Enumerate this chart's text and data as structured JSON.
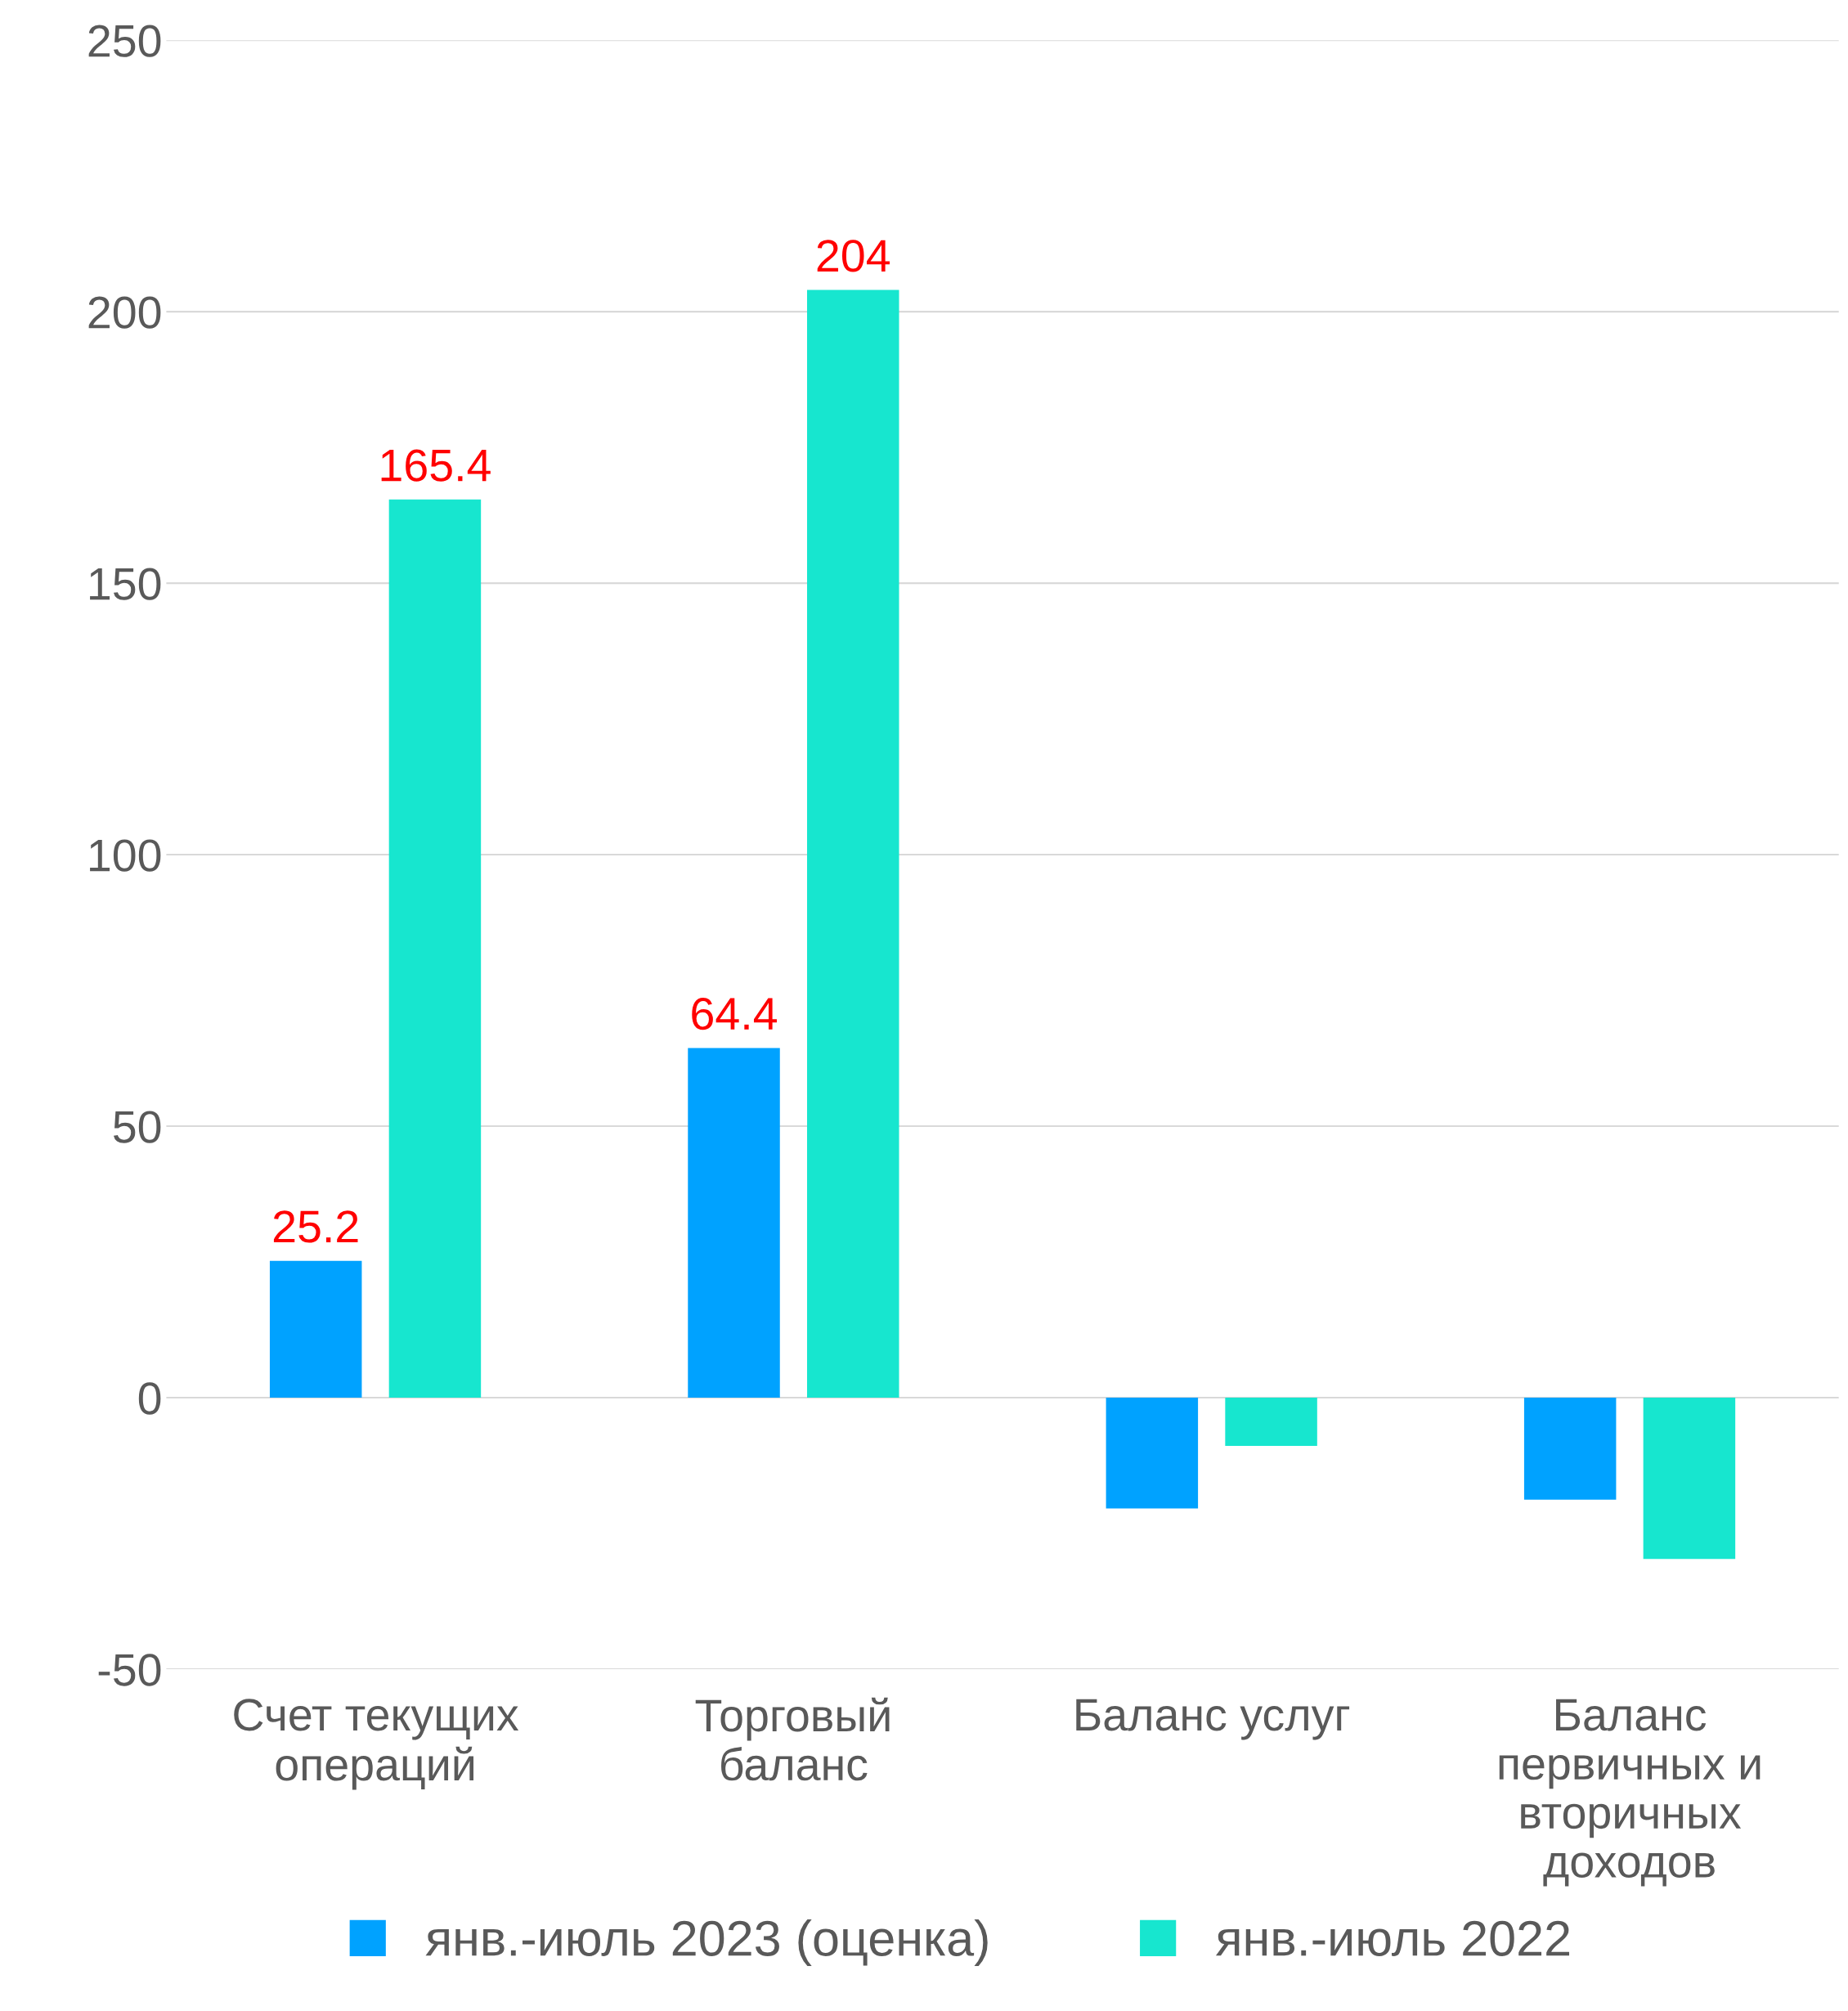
{
  "chart_data": {
    "type": "bar",
    "categories": [
      "Счет текущих\nопераций",
      "Торговый\nбаланс",
      "Баланс услуг",
      "Баланс\nпервичных и\nвторичных\nдоходов"
    ],
    "series": [
      {
        "name": "янв.-июль 2023 (оценка)",
        "color": "#00a2ff",
        "values": [
          25.2,
          64.4,
          -20.4,
          -18.8
        ],
        "value_labels": [
          "25.2",
          "64.4",
          null,
          null
        ]
      },
      {
        "name": "янв.-июль 2022",
        "color": "#17e6cf",
        "values": [
          165.4,
          204,
          -8.9,
          -29.7
        ],
        "value_labels": [
          "165.4",
          "204",
          null,
          null
        ]
      }
    ],
    "ylim": [
      -50,
      250
    ],
    "yticks": [
      -50,
      0,
      50,
      100,
      150,
      200,
      250
    ],
    "grid": "y",
    "legend": "bottom"
  }
}
